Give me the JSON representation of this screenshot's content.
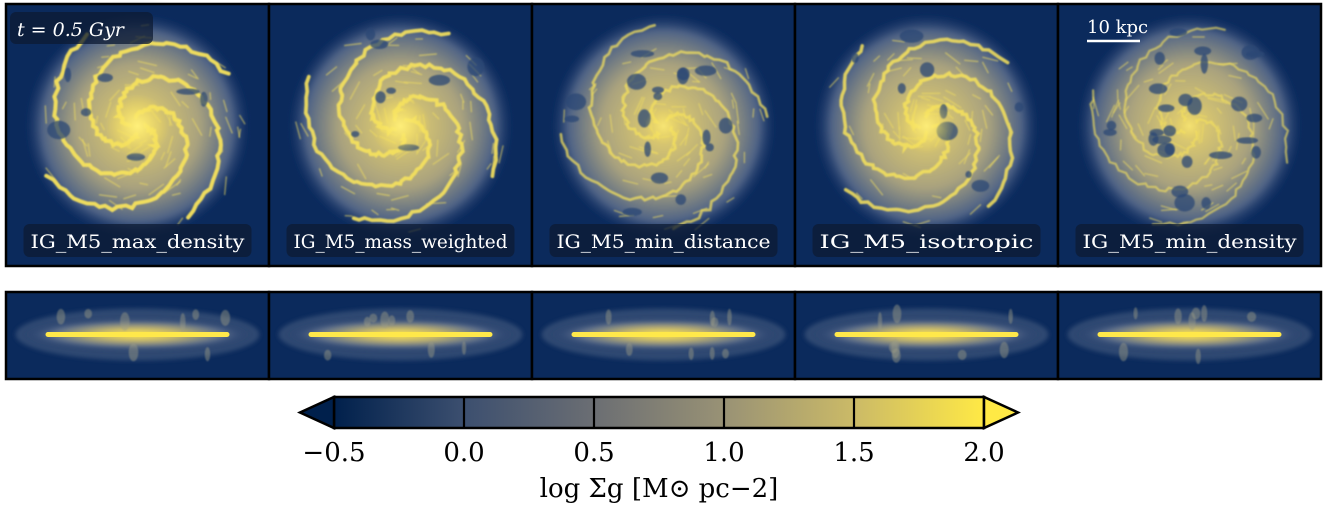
{
  "chart_data": {
    "type": "heatmap",
    "time_label": "t = 0.5 Gyr",
    "scale_bar_label": "10 kpc",
    "panels": [
      {
        "name": "IG_M5_max_density",
        "arm_strength": 1.0,
        "holes": 0.1,
        "core": 1.0
      },
      {
        "name": "IG_M5_mass_weighted",
        "arm_strength": 0.9,
        "holes": 0.15,
        "core": 0.9
      },
      {
        "name": "IG_M5_min_distance",
        "arm_strength": 0.5,
        "holes": 0.5,
        "core": 0.4
      },
      {
        "name": "IG_M5_isotropic",
        "arm_strength": 0.8,
        "holes": 0.2,
        "core": 0.8
      },
      {
        "name": "IG_M5_min_density",
        "arm_strength": 0.3,
        "holes": 0.9,
        "core": 0.2
      }
    ],
    "colorbar": {
      "label": "log Σg [M⊙ pc−2]",
      "ticks": [
        "−0.5",
        "0.0",
        "0.5",
        "1.0",
        "1.5",
        "2.0"
      ],
      "range": [
        -0.5,
        2.0
      ],
      "extend": "both",
      "colors": [
        "#00204c",
        "#3c4f6f",
        "#7d7c78",
        "#a69d75",
        "#d3c164",
        "#ffe945"
      ]
    }
  }
}
